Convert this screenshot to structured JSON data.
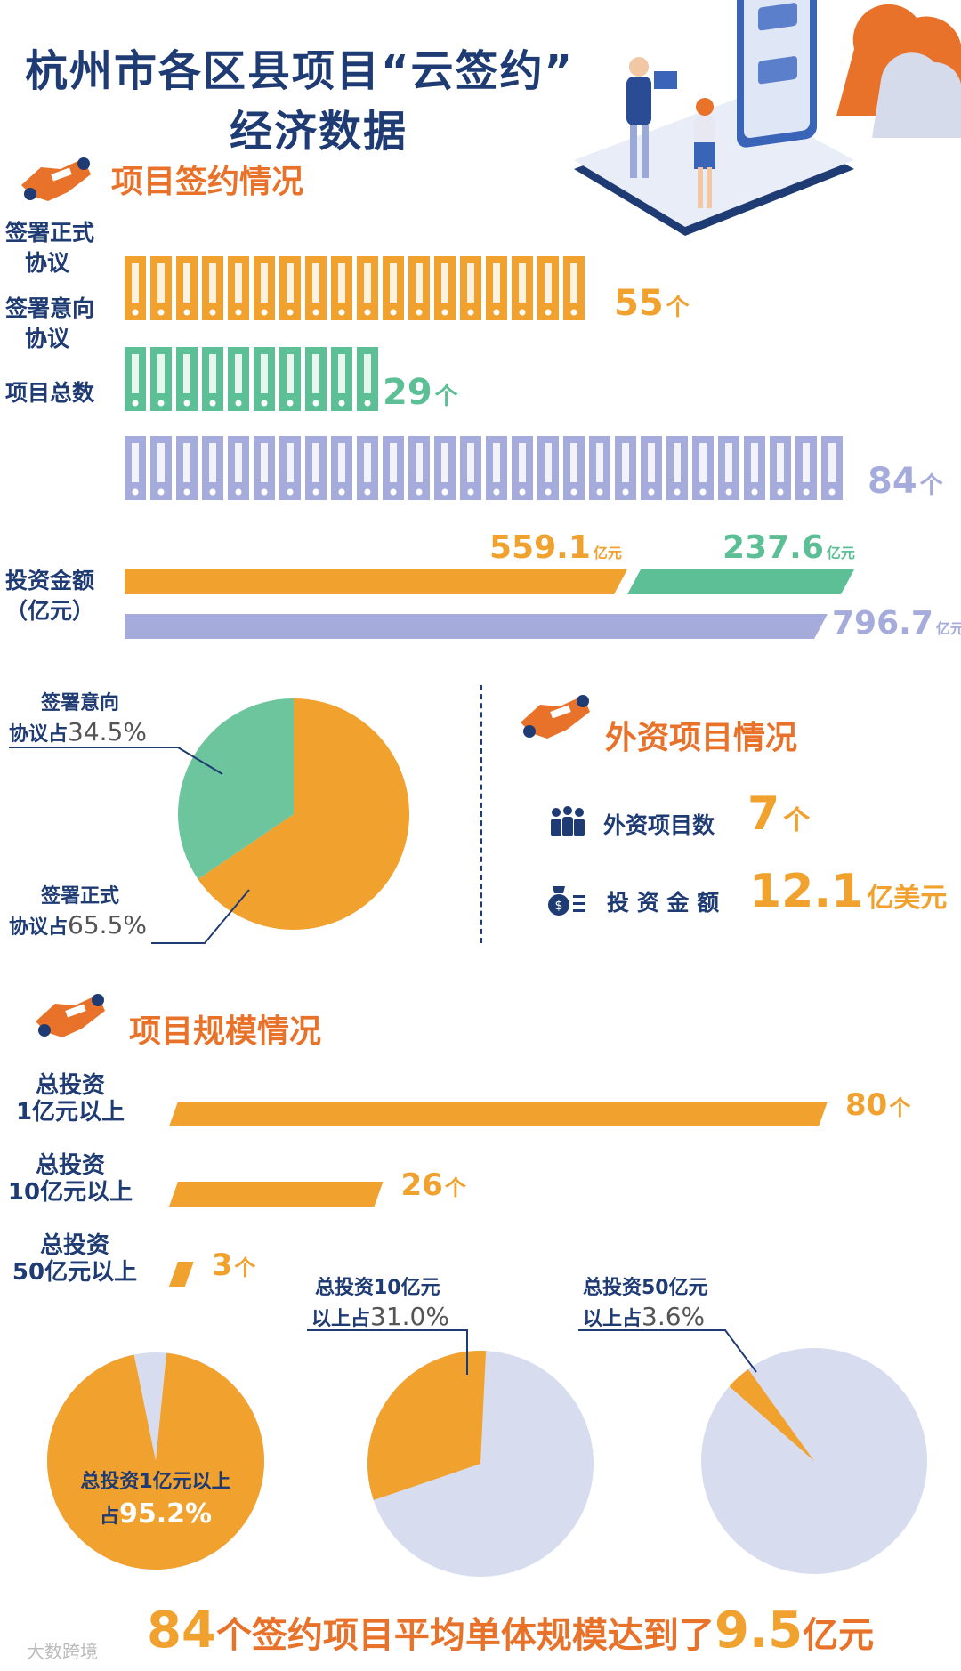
{
  "header": {
    "title_line1": "杭州市各区县项目“云签约”",
    "title_line2": "经济数据"
  },
  "sections": {
    "signing": "项目签约情况",
    "foreign": "外资项目情况",
    "scale": "项目规模情况"
  },
  "signing": {
    "rows": [
      {
        "label_line1": "签署正式",
        "label_line2": "协议",
        "value": "55",
        "unit": "个"
      },
      {
        "label_line1": "签署意向",
        "label_line2": "协议",
        "value": "29",
        "unit": "个"
      },
      {
        "label_line1": "项目总数",
        "label_line2": "",
        "value": "84",
        "unit": "个"
      }
    ],
    "investment": {
      "label_line1": "投资金额",
      "label_line2": "（亿元）",
      "formal": "559.1",
      "intent": "237.6",
      "total": "796.7",
      "unit": "亿元"
    },
    "pie": {
      "intent_label_line1": "签署意向",
      "intent_label_line2": "协议占",
      "intent_pct": "34.5%",
      "formal_label_line1": "签署正式",
      "formal_label_line2": "协议占",
      "formal_pct": "65.5%"
    }
  },
  "foreign": {
    "count_label": "外资项目数",
    "count_value": "7",
    "count_unit": "个",
    "amount_label": "投 资 金 额",
    "amount_value": "12.1",
    "amount_unit": "亿美元"
  },
  "scale": {
    "rows": [
      {
        "label_line1": "总投资",
        "label_line2": "1亿元以上",
        "value": "80",
        "unit": "个"
      },
      {
        "label_line1": "总投资",
        "label_line2": "10亿元以上",
        "value": "26",
        "unit": "个"
      },
      {
        "label_line1": "总投资",
        "label_line2": "50亿元以上",
        "value": "3",
        "unit": "个"
      }
    ],
    "pies": [
      {
        "label_line1": "总投资1亿元以上",
        "label_line2": "占",
        "pct": "95.2%"
      },
      {
        "label_line1": "总投资10亿元",
        "label_line2": "以上占",
        "pct": "31.0%"
      },
      {
        "label_line1": "总投资50亿元",
        "label_line2": "以上占",
        "pct": "3.6%"
      }
    ]
  },
  "footer": {
    "num1": "84",
    "text1": "个签约项目平均单体规模达到了",
    "num2": "9.5",
    "text2": "亿元"
  },
  "watermark": "大数跨境",
  "colors": {
    "orange": "#f0a12e",
    "green": "#5cbf95",
    "purple": "#a5abdb",
    "navy": "#1f3b73",
    "lightblue": "#d7dcef"
  },
  "chart_data": [
    {
      "type": "bar",
      "categories": [
        "签署正式协议",
        "签署意向协议",
        "项目总数"
      ],
      "values": [
        55,
        29,
        84
      ],
      "xlabel": "",
      "ylabel": ""
    },
    {
      "type": "bar",
      "categories": [
        "投资金额（亿元）"
      ],
      "series": [
        {
          "name": "",
          "values": [
            559.1
          ]
        },
        {
          "name": "",
          "values": [
            237.6
          ]
        },
        {
          "name": "",
          "values": [
            796.7
          ]
        }
      ]
    },
    {
      "type": "pie",
      "categories": [
        "签署意向协议",
        "签署正式协议"
      ],
      "values": [
        34.5,
        65.5
      ]
    },
    {
      "type": "bar",
      "categories": [
        "总投资1亿元以上",
        "总投资10亿元以上",
        "总投资50亿元以上"
      ],
      "values": [
        80,
        26,
        3
      ]
    },
    {
      "type": "pie",
      "categories": [
        "总投资1亿元以上"
      ],
      "values": [
        95.2
      ]
    },
    {
      "type": "pie",
      "categories": [
        "总投资10亿元以上"
      ],
      "values": [
        31.0
      ]
    },
    {
      "type": "pie",
      "categories": [
        "总投资50亿元以上"
      ],
      "values": [
        3.6
      ]
    }
  ]
}
